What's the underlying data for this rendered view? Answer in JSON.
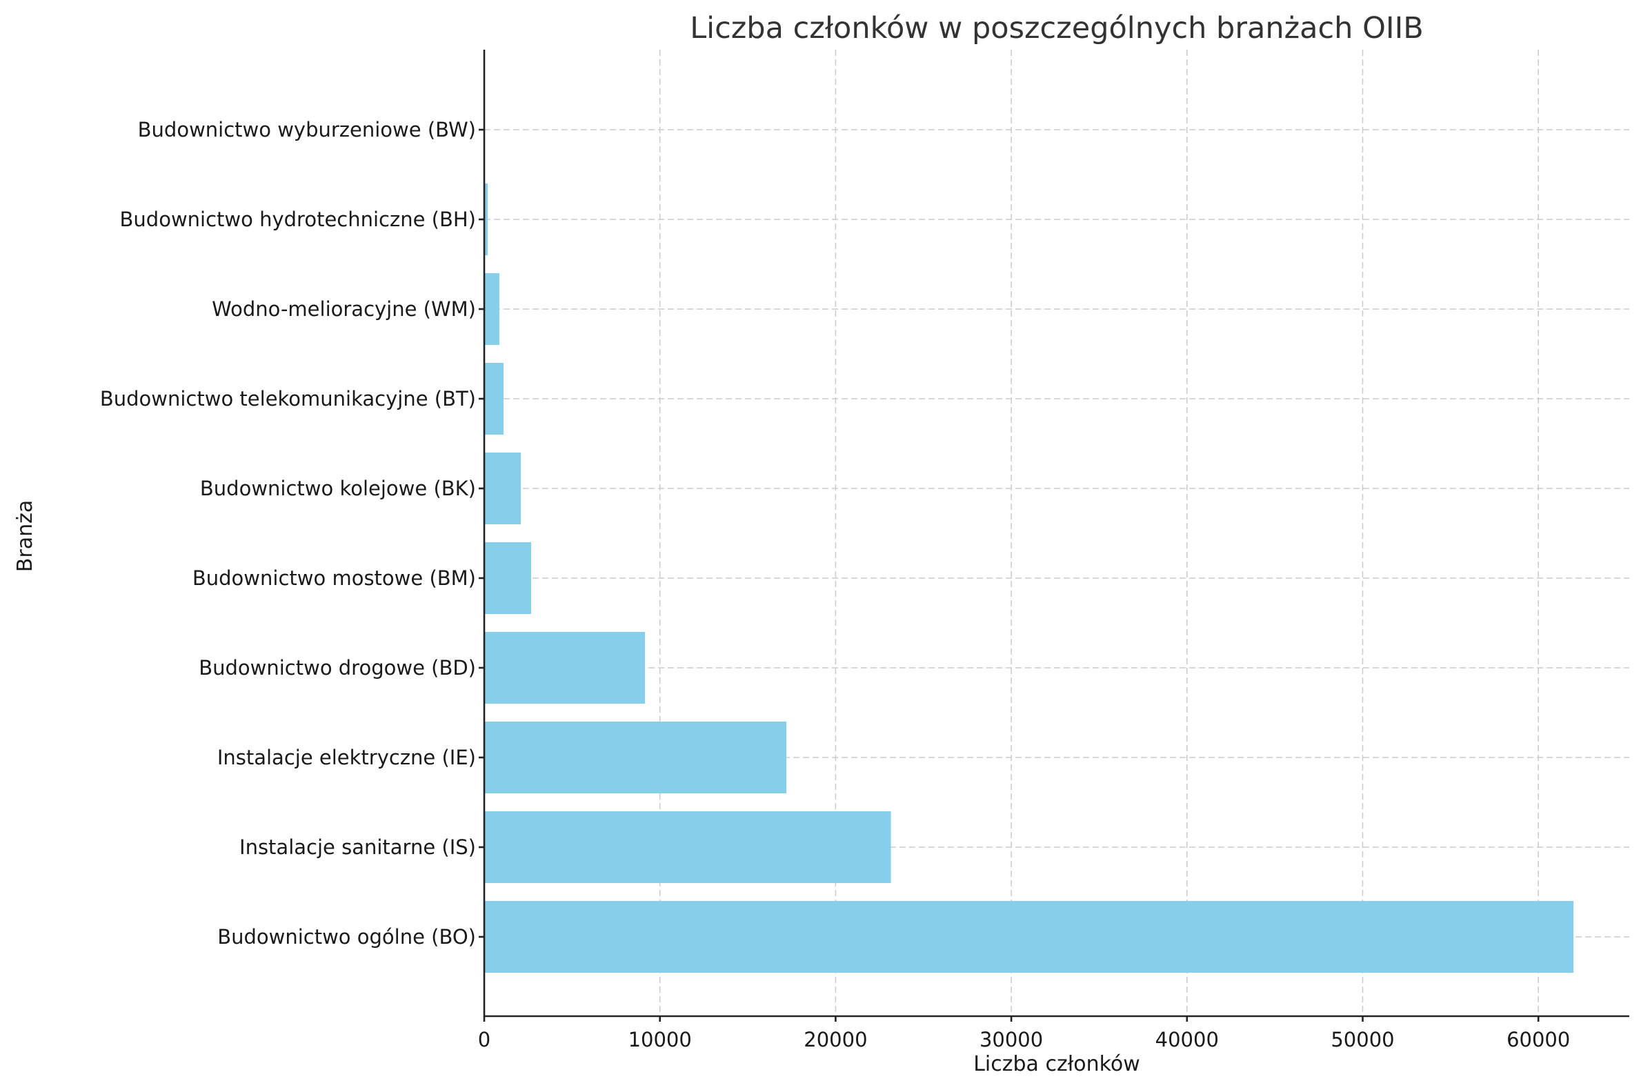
{
  "chart_data": {
    "type": "bar",
    "orientation": "horizontal",
    "title": "Liczba członków w poszczególnych branżach OIIB",
    "xlabel": "Liczba członków",
    "ylabel": "Branża",
    "categories": [
      "Budownictwo ogólne (BO)",
      "Instalacje sanitarne (IS)",
      "Instalacje elektryczne (IE)",
      "Budownictwo drogowe (BD)",
      "Budownictwo mostowe (BM)",
      "Budownictwo kolejowe (BK)",
      "Budownictwo telekomunikacyjne (BT)",
      "Wodno-melioracyjne (WM)",
      "Budownictwo hydrotechniczne (BH)",
      "Budownictwo wyburzeniowe (BW)"
    ],
    "values": [
      62000,
      23150,
      17200,
      9150,
      2670,
      2080,
      1100,
      860,
      200,
      10
    ],
    "xlim": [
      0,
      65200
    ],
    "xticks": [
      0,
      10000,
      20000,
      30000,
      40000,
      50000,
      60000
    ],
    "xtick_labels": [
      "0",
      "10000",
      "20000",
      "30000",
      "40000",
      "50000",
      "60000"
    ],
    "grid": true,
    "grid_style": "dashed",
    "legend": null,
    "bar_color": "#87CEEB"
  },
  "colors": {
    "bar": "#87CEEB",
    "grid": "#cccccc",
    "axis": "#222222",
    "title": "#333333",
    "text": "#1a1a1a"
  }
}
